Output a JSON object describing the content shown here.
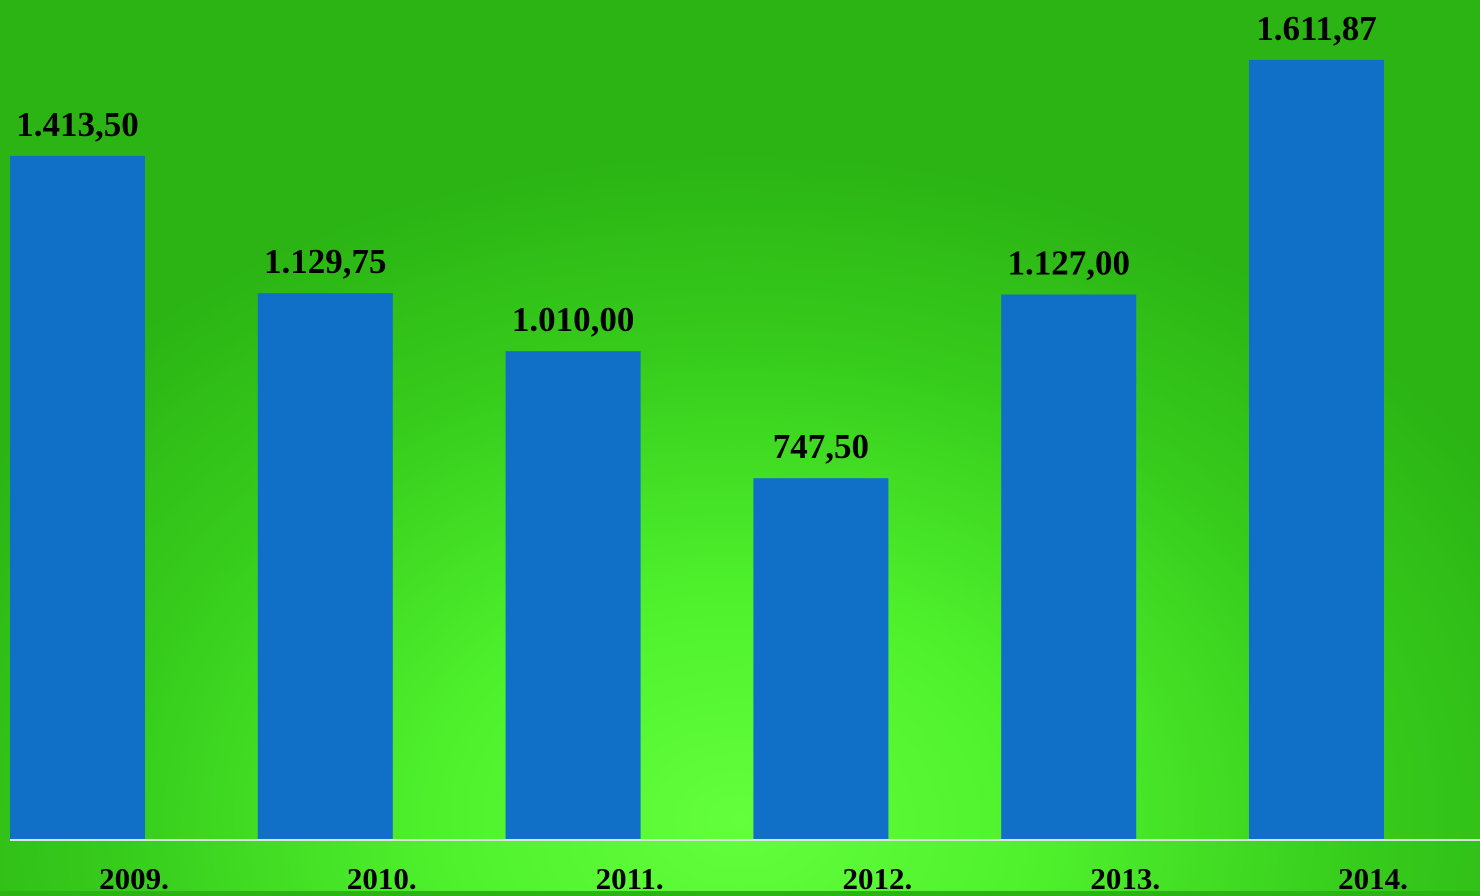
{
  "colors": {
    "bar": "#106fc6",
    "axis": "#d8e8d8",
    "label": "#000000"
  },
  "chart_data": {
    "type": "bar",
    "categories": [
      "2009.",
      "2010.",
      "2011.",
      "2012.",
      "2013.",
      "2014."
    ],
    "values": [
      1413.5,
      1129.75,
      1010.0,
      747.5,
      1127.0,
      1611.87
    ],
    "data_labels": [
      "1.413,50",
      "1.129,75",
      "1.010,00",
      "747,50",
      "1.127,00",
      "1.611,87"
    ],
    "ylim": [
      0,
      1800
    ],
    "grid": false,
    "legend": "none"
  }
}
